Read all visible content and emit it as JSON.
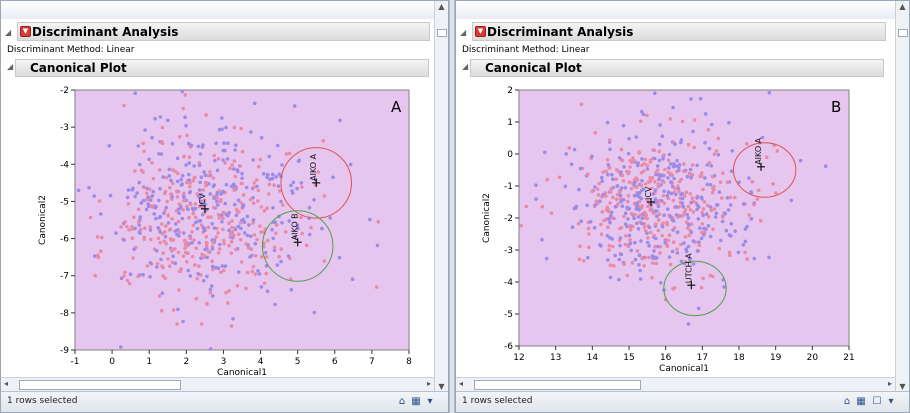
{
  "panels": [
    {
      "title": "Discriminant Analysis",
      "method": "Discriminant Method: Linear",
      "plot_title": "Canonical Plot",
      "status": "1 rows selected",
      "panel_label": "A",
      "chart_data": {
        "type": "scatter",
        "xlabel": "Canonical1",
        "ylabel": "Canonical2",
        "xlim": [
          -1,
          8
        ],
        "ylim": [
          -9,
          -2
        ],
        "xticks": [
          -1,
          0,
          1,
          2,
          3,
          4,
          5,
          6,
          7,
          8
        ],
        "yticks": [
          -9,
          -8,
          -7,
          -6,
          -5,
          -4,
          -3,
          -2
        ],
        "grid": false,
        "background": "#e6c6ee",
        "series": [
          {
            "color": "#e98aa6",
            "center": [
              2.5,
              -5.3
            ],
            "spread": [
              1.25,
              1.05
            ],
            "count": 330,
            "seed": 11
          },
          {
            "color": "#9b8be8",
            "center": [
              2.6,
              -5.2
            ],
            "spread": [
              1.35,
              1.1
            ],
            "count": 330,
            "seed": 29
          }
        ],
        "markers": [
          {
            "label": "ICV",
            "x": 2.5,
            "y": -5.2
          },
          {
            "label": "AIKO A",
            "x": 5.5,
            "y": -4.5
          },
          {
            "label": "AIKO B",
            "x": 5.0,
            "y": -6.1
          }
        ],
        "circles": [
          {
            "cx": 5.5,
            "cy": -4.5,
            "r": 0.95,
            "color": "#e05050"
          },
          {
            "cx": 5.0,
            "cy": -6.2,
            "r": 0.95,
            "color": "#4aa04a"
          }
        ]
      }
    },
    {
      "title": "Discriminant Analysis",
      "method": "Discriminant Method: Linear",
      "plot_title": "Canonical Plot",
      "status": "1 rows selected",
      "panel_label": "B",
      "chart_data": {
        "type": "scatter",
        "xlabel": "Canonical1",
        "ylabel": "Canonical2",
        "xlim": [
          12,
          21
        ],
        "ylim": [
          -6,
          2
        ],
        "xticks": [
          12,
          13,
          14,
          15,
          16,
          17,
          18,
          19,
          20,
          21
        ],
        "yticks": [
          -6,
          -5,
          -4,
          -3,
          -2,
          -1,
          0,
          1,
          2
        ],
        "grid": false,
        "background": "#e6c6ee",
        "series": [
          {
            "color": "#e98aa6",
            "center": [
              15.7,
              -1.5
            ],
            "spread": [
              1.1,
              1.0
            ],
            "count": 330,
            "seed": 47
          },
          {
            "color": "#9b8be8",
            "center": [
              15.8,
              -1.4
            ],
            "spread": [
              1.2,
              1.05
            ],
            "count": 330,
            "seed": 83
          }
        ],
        "markers": [
          {
            "label": "ICV",
            "x": 15.6,
            "y": -1.5
          },
          {
            "label": "AIKO A",
            "x": 18.6,
            "y": -0.4
          },
          {
            "label": "UTCH A",
            "x": 16.7,
            "y": -4.1
          }
        ],
        "circles": [
          {
            "cx": 18.7,
            "cy": -0.5,
            "r": 0.85,
            "color": "#e05050"
          },
          {
            "cx": 16.8,
            "cy": -4.2,
            "r": 0.85,
            "color": "#4aa04a"
          }
        ]
      }
    }
  ]
}
